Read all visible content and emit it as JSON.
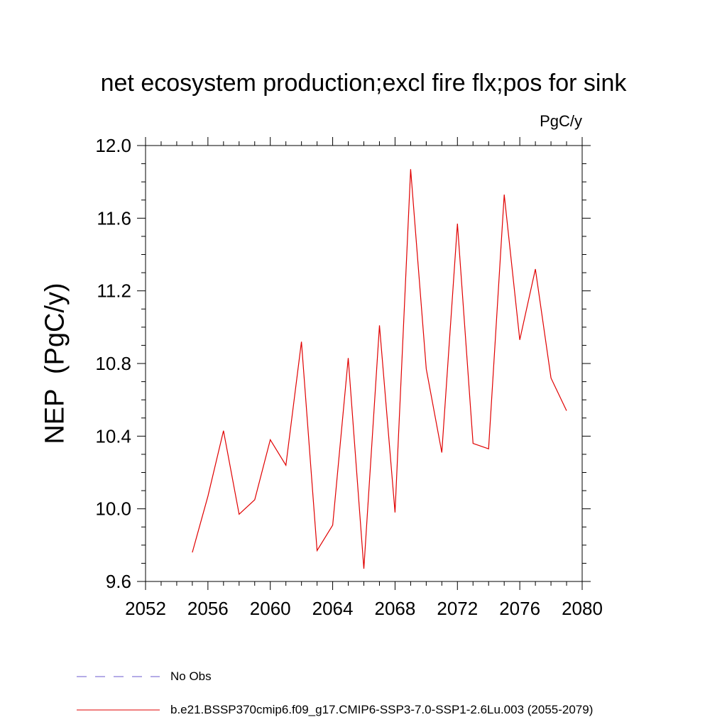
{
  "chart_data": {
    "type": "line",
    "title": "net ecosystem production;excl fire flx;pos for sink",
    "units": "PgC/y",
    "ylabel": "NEP  (PgC/y)",
    "xlabel": "",
    "xlim": [
      2052,
      2080
    ],
    "ylim": [
      9.6,
      12.0
    ],
    "x_ticks": [
      "2052",
      "2056",
      "2060",
      "2064",
      "2068",
      "2072",
      "2076",
      "2080"
    ],
    "y_ticks": [
      "9.6",
      "10.0",
      "10.4",
      "10.8",
      "11.2",
      "11.6",
      "12.0"
    ],
    "grid": false,
    "legend": {
      "placement": "bottom",
      "entries": [
        {
          "label": "No Obs",
          "color": "#6a5acd",
          "style": "dashed"
        },
        {
          "label": "b.e21.BSSP370cmip6.f09_g17.CMIP6-SSP3-7.0-SSP1-2.6Lu.003 (2055-2079)",
          "color": "#e00000",
          "style": "solid"
        }
      ]
    },
    "series": [
      {
        "name": "b.e21.BSSP370cmip6.f09_g17.CMIP6-SSP3-7.0-SSP1-2.6Lu.003 (2055-2079)",
        "color": "#e00000",
        "x": [
          2055,
          2056,
          2057,
          2058,
          2059,
          2060,
          2061,
          2062,
          2063,
          2064,
          2065,
          2066,
          2067,
          2068,
          2069,
          2070,
          2071,
          2072,
          2073,
          2074,
          2075,
          2076,
          2077,
          2078,
          2079
        ],
        "values": [
          9.76,
          10.07,
          10.43,
          9.97,
          10.05,
          10.38,
          10.24,
          10.92,
          9.77,
          9.91,
          10.83,
          9.67,
          11.01,
          9.98,
          11.87,
          10.77,
          10.31,
          11.57,
          10.36,
          10.33,
          11.73,
          10.93,
          11.32,
          10.72,
          10.54
        ]
      }
    ]
  }
}
